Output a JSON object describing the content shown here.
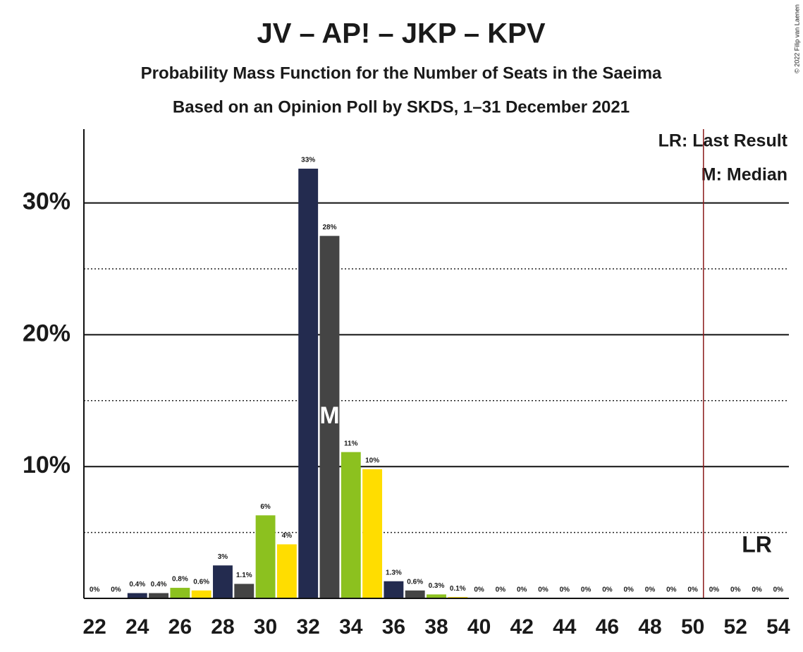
{
  "chart_data": {
    "type": "bar",
    "title": "JV – AP! – JKP – KPV",
    "subtitle": "Probability Mass Function for the Number of Seats in the Saeima",
    "subtitle2": "Based on an Opinion Poll by SKDS, 1–31 December 2021",
    "copyright": "© 2022 Filip van Laenen",
    "x": [
      22,
      23,
      24,
      25,
      26,
      27,
      28,
      29,
      30,
      31,
      32,
      33,
      34,
      35,
      36,
      37,
      38,
      39,
      40,
      41,
      42,
      43,
      44,
      45,
      46,
      47,
      48,
      49,
      50,
      51,
      52,
      53,
      54
    ],
    "values": [
      0,
      0,
      0.4,
      0.4,
      0.8,
      0.6,
      2.5,
      1.1,
      6.3,
      4.1,
      32.6,
      27.5,
      11.1,
      9.8,
      1.3,
      0.6,
      0.3,
      0.1,
      0,
      0,
      0,
      0,
      0,
      0,
      0,
      0,
      0,
      0,
      0,
      0,
      0,
      0,
      0
    ],
    "value_labels": [
      "0%",
      "0%",
      "0.4%",
      "0.4%",
      "0.8%",
      "0.6%",
      "3%",
      "1.1%",
      "6%",
      "4%",
      "33%",
      "28%",
      "11%",
      "10%",
      "1.3%",
      "0.6%",
      "0.3%",
      "0.1%",
      "0%",
      "0%",
      "0%",
      "0%",
      "0%",
      "0%",
      "0%",
      "0%",
      "0%",
      "0%",
      "0%",
      "0%",
      "0%",
      "0%",
      "0%"
    ],
    "colors": [
      "#8cc11f",
      "#ffdd00",
      "#232b4f",
      "#444444"
    ],
    "xlim": [
      21.5,
      54.5
    ],
    "xticks": [
      22,
      24,
      26,
      28,
      30,
      32,
      34,
      36,
      38,
      40,
      42,
      44,
      46,
      48,
      50,
      52,
      54
    ],
    "ylim": [
      0,
      35.6
    ],
    "yticks": [
      {
        "value": 10,
        "label": "10%"
      },
      {
        "value": 20,
        "label": "20%"
      },
      {
        "value": 30,
        "label": "30%"
      }
    ],
    "minor_yticks": [
      5,
      15,
      25
    ],
    "median": {
      "x": 33,
      "label": "M"
    },
    "last_result": {
      "x": 50.5,
      "label": "LR",
      "color": "#8b1a1a"
    },
    "legend": [
      "LR: Last Result",
      "M: Median"
    ]
  }
}
